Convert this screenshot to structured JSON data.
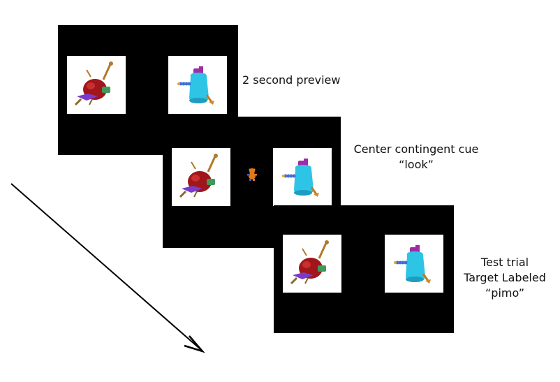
{
  "screens": [
    {
      "id": "preview",
      "caption_lines": [
        "2 second preview"
      ],
      "objects": [
        "red-snail-novel-object",
        "blue-jug-novel-object"
      ],
      "has_center_cue": false
    },
    {
      "id": "center-cue",
      "caption_lines": [
        "Center contingent cue",
        "“look”"
      ],
      "objects": [
        "red-snail-novel-object",
        "blue-jug-novel-object"
      ],
      "has_center_cue": true
    },
    {
      "id": "test-trial",
      "caption_lines": [
        "Test trial",
        "Target Labeled",
        "“pimo”"
      ],
      "objects": [
        "red-snail-novel-object",
        "blue-jug-novel-object"
      ],
      "has_center_cue": false
    }
  ],
  "colors": {
    "screen": "#000000",
    "card": "#ffffff",
    "snail_body": "#a0161a",
    "snail_accent": "#7a3cc8",
    "snail_green": "#3f9a5a",
    "jug_body": "#2ec4e6",
    "jug_cap": "#a02aa8",
    "jug_pipe": "#3f6fd8",
    "cue_toy": "#e07a1a",
    "arrow": "#000000"
  }
}
